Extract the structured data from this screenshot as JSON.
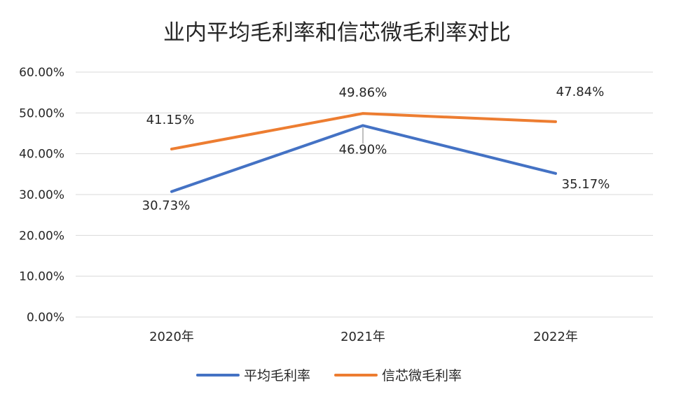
{
  "chart_data": {
    "type": "line",
    "title": "业内平均毛利率和信芯微毛利率对比",
    "categories": [
      "2020年",
      "2021年",
      "2022年"
    ],
    "ylim": [
      0,
      60
    ],
    "y_ticks": [
      "0.00%",
      "10.00%",
      "20.00%",
      "30.00%",
      "40.00%",
      "50.00%",
      "60.00%"
    ],
    "grid": true,
    "legend_position": "bottom",
    "series": [
      {
        "name": "平均毛利率",
        "color": "#4472C4",
        "values": [
          30.73,
          46.9,
          35.17
        ],
        "labels": [
          "30.73%",
          "46.90%",
          "35.17%"
        ]
      },
      {
        "name": "信芯微毛利率",
        "color": "#ED7D31",
        "values": [
          41.15,
          49.86,
          47.84
        ],
        "labels": [
          "41.15%",
          "49.86%",
          "47.84%"
        ]
      }
    ]
  }
}
